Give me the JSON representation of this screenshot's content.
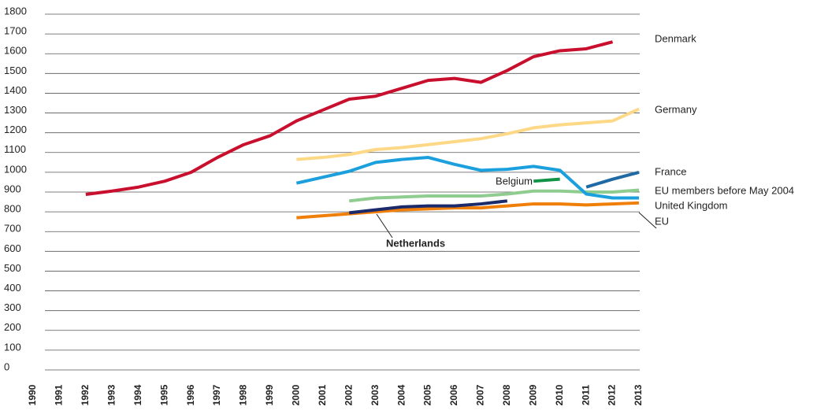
{
  "chart_data": {
    "type": "line",
    "categories": [
      "1990",
      "1991",
      "1992",
      "1993",
      "1994",
      "1995",
      "1996",
      "1997",
      "1998",
      "1999",
      "2000",
      "2001",
      "2002",
      "2003",
      "2004",
      "2005",
      "2006",
      "2007",
      "2008",
      "2009",
      "2010",
      "2011",
      "2012",
      "2013"
    ],
    "ylim": [
      0,
      1800
    ],
    "yticks": [
      0,
      100,
      200,
      300,
      400,
      500,
      600,
      700,
      800,
      900,
      1000,
      1100,
      1200,
      1300,
      1400,
      1500,
      1600,
      1700,
      1800
    ],
    "grid": true,
    "series": [
      {
        "name": "Denmark",
        "color": "#c8102e",
        "values": [
          null,
          null,
          888,
          905,
          925,
          955,
          1000,
          1075,
          1140,
          1185,
          1260,
          1315,
          1370,
          1385,
          1425,
          1465,
          1475,
          1455,
          1515,
          1585,
          1615,
          1625,
          1660,
          null
        ]
      },
      {
        "name": "Germany",
        "color": "#fdd886",
        "values": [
          null,
          null,
          null,
          null,
          null,
          null,
          null,
          null,
          null,
          null,
          1065,
          1075,
          1090,
          1115,
          1125,
          1140,
          1155,
          1170,
          1195,
          1225,
          1240,
          1250,
          1260,
          1320
        ]
      },
      {
        "name": "France",
        "color": "#1f6aa5",
        "values": [
          null,
          null,
          null,
          null,
          null,
          null,
          null,
          null,
          null,
          null,
          null,
          null,
          null,
          null,
          null,
          null,
          null,
          null,
          null,
          null,
          null,
          925,
          965,
          1000
        ]
      },
      {
        "name": "EU members before May 2004",
        "color": "#8fcc8f",
        "values": [
          null,
          null,
          null,
          null,
          null,
          null,
          null,
          null,
          null,
          null,
          null,
          null,
          855,
          870,
          875,
          880,
          880,
          880,
          890,
          905,
          905,
          900,
          900,
          910
        ]
      },
      {
        "name": "United Kingdom",
        "color": "#1ba0dd",
        "values": [
          null,
          null,
          null,
          null,
          null,
          null,
          null,
          null,
          null,
          null,
          945,
          975,
          1005,
          1050,
          1065,
          1075,
          1040,
          1010,
          1015,
          1030,
          1010,
          890,
          870,
          870
        ]
      },
      {
        "name": "EU",
        "color": "#f07f09",
        "values": [
          null,
          null,
          null,
          null,
          null,
          null,
          null,
          null,
          null,
          null,
          770,
          780,
          790,
          800,
          810,
          815,
          820,
          820,
          830,
          840,
          840,
          835,
          840,
          845
        ]
      },
      {
        "name": "Belgium",
        "color": "#129447",
        "values": [
          null,
          null,
          null,
          null,
          null,
          null,
          null,
          null,
          null,
          null,
          null,
          null,
          null,
          null,
          null,
          null,
          null,
          null,
          null,
          955,
          965,
          null,
          null,
          null
        ]
      },
      {
        "name": "Netherlands",
        "color": "#1b2a6b",
        "values": [
          null,
          null,
          null,
          null,
          null,
          null,
          null,
          null,
          null,
          null,
          null,
          null,
          795,
          810,
          825,
          830,
          830,
          840,
          855,
          null,
          null,
          null,
          null,
          null
        ]
      }
    ]
  }
}
